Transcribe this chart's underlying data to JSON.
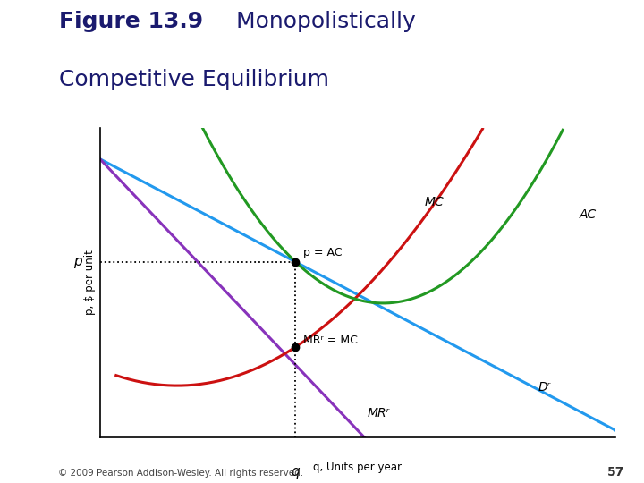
{
  "title_bold": "Figure 13.9",
  "title_regular": "  Monopolistically",
  "title_line2": "Competitive Equilibrium",
  "bg_color_left": "#c8c0b0",
  "bg_color_right": "#ffffff",
  "chart_bg": "#ffffff",
  "ylabel": "p, $ per unit",
  "xlabel": "q, Units per year",
  "x_q_label": "q",
  "equilibrium_x": 3.8,
  "equilibrium_p": 6.8,
  "equilibrium_mr_y": 3.5,
  "xlim": [
    0,
    10
  ],
  "ylim": [
    0,
    12
  ],
  "D_color": "#2299ee",
  "MR_color": "#8833bb",
  "MC_color": "#cc1111",
  "AC_color": "#229922",
  "dot_color": "#000000",
  "copyright": "© 2009 Pearson Addison-Wesley. All rights reserved.",
  "page_num": "57",
  "label_MC": "MC",
  "label_AC": "AC",
  "label_MRr": "MRʳ",
  "label_Dr": "Dʳ",
  "label_p_eq_AC": "p = AC",
  "label_MRr_eq_MC": "MRʳ = MC",
  "label_p": "p",
  "separator_color": "#c8b855",
  "title_color": "#1a1a6e",
  "title_fontsize": 18
}
